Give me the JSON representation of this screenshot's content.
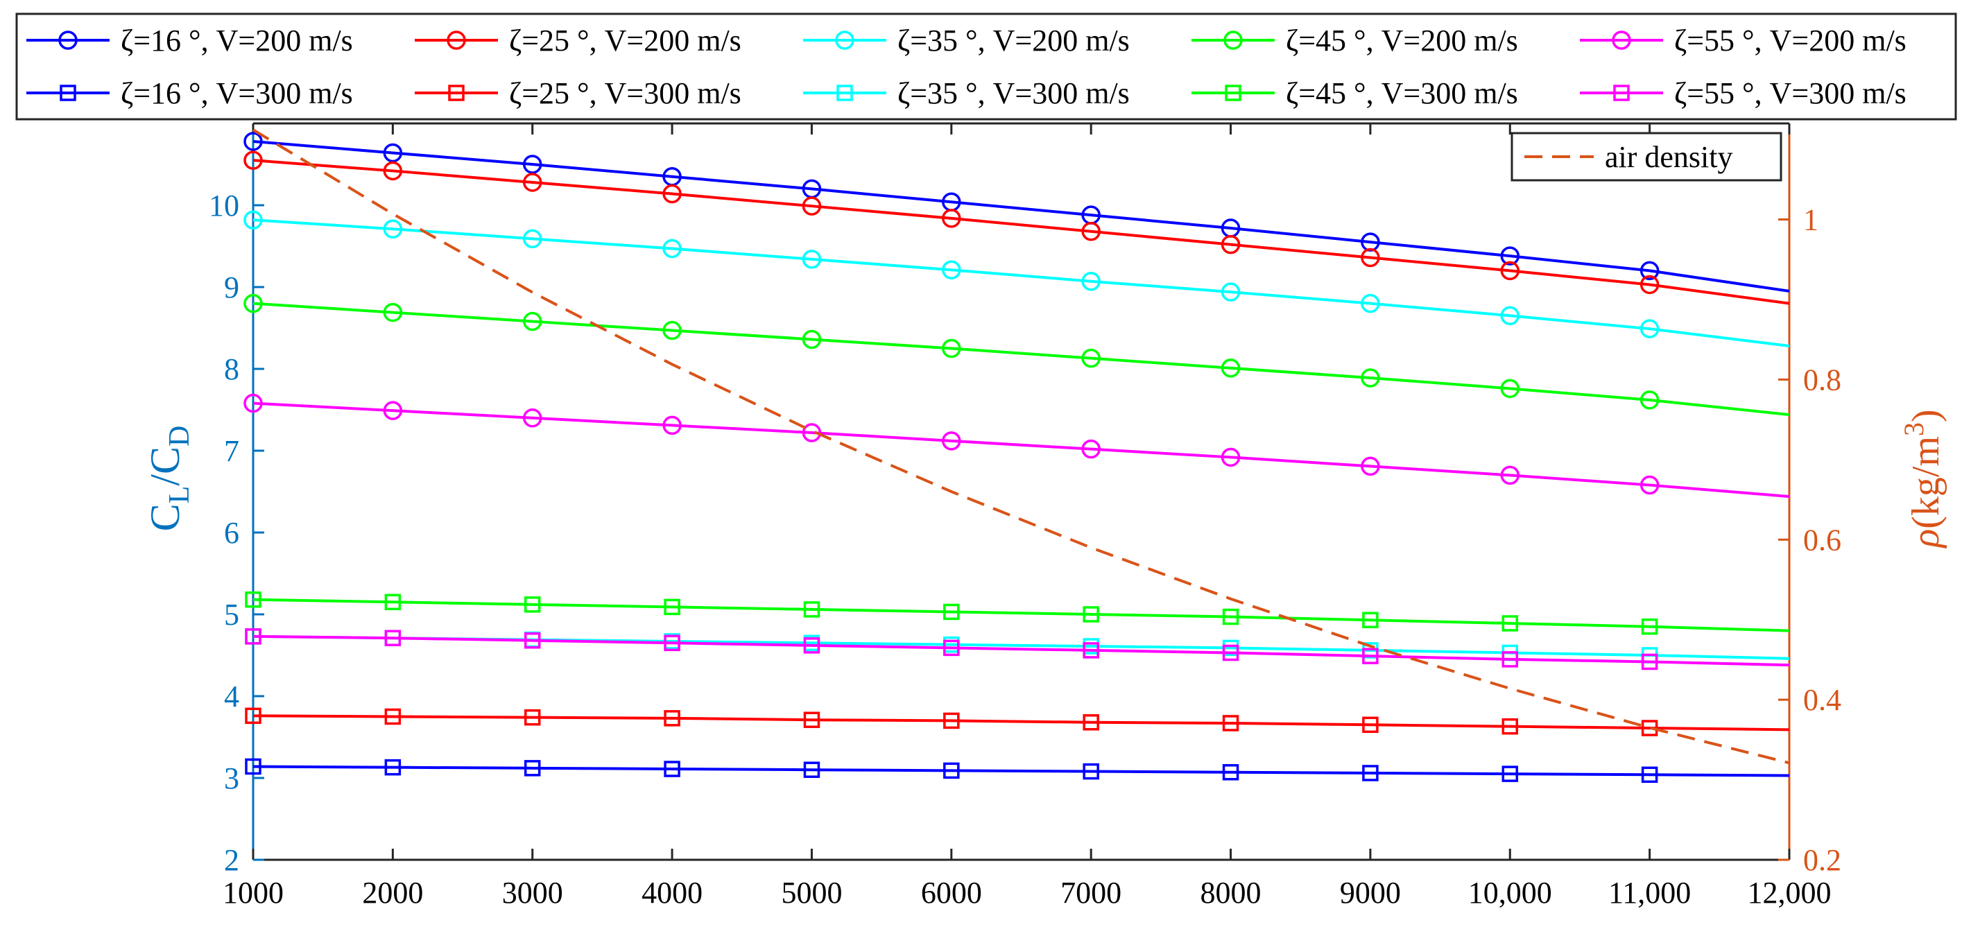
{
  "chart_data": {
    "type": "line",
    "x": [
      1000,
      2000,
      3000,
      4000,
      5000,
      6000,
      7000,
      8000,
      9000,
      10000,
      11000,
      12000
    ],
    "x_tick_labels": [
      "1000",
      "2000",
      "3000",
      "4000",
      "5000",
      "6000",
      "7000",
      "8000",
      "9000",
      "10,000",
      "11,000",
      "12,000"
    ],
    "xlim": [
      1000,
      12000
    ],
    "xlabel": "",
    "ylabel_left": {
      "main": "C",
      "sub1": "L",
      "mid": "/C",
      "sub2": "D"
    },
    "ylim_left": [
      2,
      11
    ],
    "y_ticks_left": [
      "2",
      "3",
      "4",
      "5",
      "6",
      "7",
      "8",
      "9",
      "10"
    ],
    "ylabel_right": {
      "rho": "ρ",
      "unit": "(kg/m",
      "sup": "3",
      "close": ")"
    },
    "ylim_right": [
      0.2,
      1.12
    ],
    "y_ticks_right": [
      "0.2",
      "0.4",
      "0.6",
      "0.8",
      "1"
    ],
    "grid": false,
    "legend_position": "top-outside",
    "series": [
      {
        "name": "ζ=16 °, V=200 m/s",
        "color": "#0000FF",
        "marker": "circle",
        "axis": "left",
        "values": [
          10.78,
          10.64,
          10.5,
          10.35,
          10.2,
          10.04,
          9.88,
          9.72,
          9.55,
          9.38,
          9.2,
          8.95
        ]
      },
      {
        "name": "ζ=25 °, V=200 m/s",
        "color": "#FF0000",
        "marker": "circle",
        "axis": "left",
        "values": [
          10.55,
          10.42,
          10.28,
          10.14,
          9.99,
          9.84,
          9.68,
          9.52,
          9.36,
          9.2,
          9.03,
          8.8
        ]
      },
      {
        "name": "ζ=35 °, V=200 m/s",
        "color": "#00FFFF",
        "marker": "circle",
        "axis": "left",
        "values": [
          9.82,
          9.71,
          9.59,
          9.47,
          9.34,
          9.21,
          9.07,
          8.94,
          8.8,
          8.65,
          8.49,
          8.28
        ]
      },
      {
        "name": "ζ=45 °, V=200 m/s",
        "color": "#00FF00",
        "marker": "circle",
        "axis": "left",
        "values": [
          8.8,
          8.69,
          8.58,
          8.47,
          8.36,
          8.25,
          8.13,
          8.01,
          7.89,
          7.76,
          7.62,
          7.44
        ]
      },
      {
        "name": "ζ=55 °, V=200 m/s",
        "color": "#FF00FF",
        "marker": "circle",
        "axis": "left",
        "values": [
          7.58,
          7.49,
          7.4,
          7.31,
          7.22,
          7.12,
          7.02,
          6.92,
          6.81,
          6.7,
          6.58,
          6.44
        ]
      },
      {
        "name": "ζ=16 °, V=300 m/s",
        "color": "#0000FF",
        "marker": "square",
        "axis": "left",
        "values": [
          3.14,
          3.13,
          3.12,
          3.11,
          3.1,
          3.09,
          3.08,
          3.07,
          3.06,
          3.05,
          3.04,
          3.03
        ]
      },
      {
        "name": "ζ=25 °, V=300 m/s",
        "color": "#FF0000",
        "marker": "square",
        "axis": "left",
        "values": [
          3.76,
          3.75,
          3.74,
          3.73,
          3.71,
          3.7,
          3.68,
          3.67,
          3.65,
          3.63,
          3.61,
          3.59
        ]
      },
      {
        "name": "ζ=35 °, V=300 m/s",
        "color": "#00FFFF",
        "marker": "square",
        "axis": "left",
        "values": [
          4.73,
          4.71,
          4.69,
          4.67,
          4.65,
          4.63,
          4.61,
          4.59,
          4.56,
          4.53,
          4.5,
          4.46
        ]
      },
      {
        "name": "ζ=45 °, V=300 m/s",
        "color": "#00FF00",
        "marker": "square",
        "axis": "left",
        "values": [
          5.18,
          5.15,
          5.12,
          5.09,
          5.06,
          5.03,
          5.0,
          4.97,
          4.93,
          4.89,
          4.85,
          4.8
        ]
      },
      {
        "name": "ζ=55 °, V=300 m/s",
        "color": "#FF00FF",
        "marker": "square",
        "axis": "left",
        "values": [
          4.73,
          4.71,
          4.68,
          4.65,
          4.62,
          4.59,
          4.56,
          4.53,
          4.49,
          4.45,
          4.42,
          4.38
        ]
      },
      {
        "name": "air density",
        "color": "#D95319",
        "marker": "none",
        "dashed": true,
        "axis": "right",
        "values": [
          1.112,
          1.007,
          0.909,
          0.819,
          0.736,
          0.66,
          0.59,
          0.526,
          0.467,
          0.414,
          0.365,
          0.321
        ]
      }
    ]
  },
  "colors": {
    "left_axis": "#0072BD",
    "right_axis": "#D95319",
    "box": "#000000"
  }
}
